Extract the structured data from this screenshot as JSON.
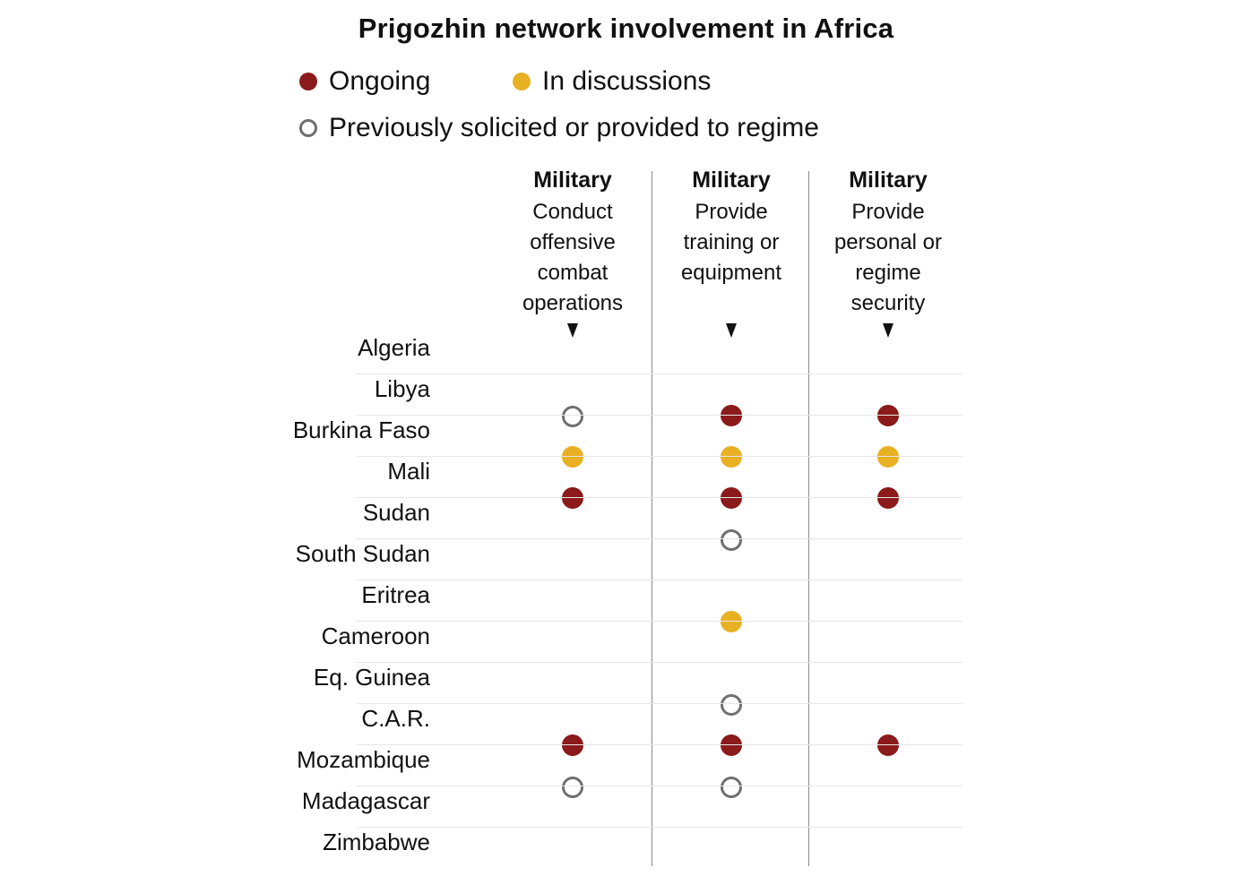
{
  "chart_data": {
    "type": "table",
    "title": "Prigozhin network involvement in Africa",
    "legend": [
      {
        "key": "ongoing",
        "label": "Ongoing",
        "color": "#8b1a1a",
        "style": "filled"
      },
      {
        "key": "discussions",
        "label": "In discussions",
        "color": "#e8b023",
        "style": "filled"
      },
      {
        "key": "previous",
        "label": "Previously solicited or provided to regime",
        "color": "#6f6f6f",
        "style": "hollow"
      }
    ],
    "columns": [
      {
        "category": "Military",
        "description": [
          "Conduct",
          "offensive",
          "combat",
          "operations"
        ]
      },
      {
        "category": "Military",
        "description": [
          "Provide",
          "training or",
          "equipment"
        ]
      },
      {
        "category": "Military",
        "description": [
          "Provide",
          "personal or",
          "regime",
          "security"
        ]
      }
    ],
    "rows": [
      {
        "country": "Algeria",
        "values": [
          null,
          null,
          null
        ]
      },
      {
        "country": "Libya",
        "values": [
          "previous",
          "ongoing",
          "ongoing"
        ]
      },
      {
        "country": "Burkina Faso",
        "values": [
          "discussions",
          "discussions",
          "discussions"
        ]
      },
      {
        "country": "Mali",
        "values": [
          "ongoing",
          "ongoing",
          "ongoing"
        ]
      },
      {
        "country": "Sudan",
        "values": [
          null,
          "previous",
          null
        ]
      },
      {
        "country": "South Sudan",
        "values": [
          null,
          null,
          null
        ]
      },
      {
        "country": "Eritrea",
        "values": [
          null,
          "discussions",
          null
        ]
      },
      {
        "country": "Cameroon",
        "values": [
          null,
          null,
          null
        ]
      },
      {
        "country": "Eq. Guinea",
        "values": [
          null,
          "previous",
          null
        ]
      },
      {
        "country": "C.A.R.",
        "values": [
          "ongoing",
          "ongoing",
          "ongoing"
        ]
      },
      {
        "country": "Mozambique",
        "values": [
          "previous",
          "previous",
          null
        ]
      },
      {
        "country": "Madagascar",
        "values": [
          null,
          null,
          null
        ]
      },
      {
        "country": "Zimbabwe",
        "values": [
          null,
          null,
          null
        ]
      }
    ]
  }
}
